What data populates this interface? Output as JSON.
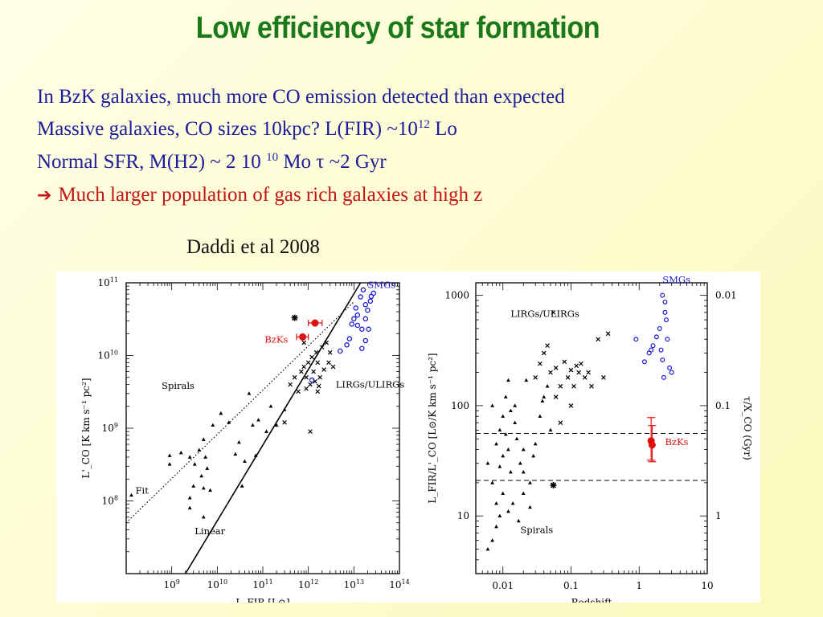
{
  "slide": {
    "title": "Low efficiency of star formation",
    "lines": [
      {
        "text": "In BzK galaxies, much more CO emission detected than expected"
      },
      {
        "pre": "Massive galaxies, CO sizes 10kpc?  L(FIR) ~10",
        "sup": "12",
        "post": " Lo"
      },
      {
        "pre": "Normal SFR, M(H2) ~ 2 10 ",
        "sup": "10",
        "post": " Mo  τ ~2 Gyr"
      },
      {
        "arrow": "➔",
        "text": "Much larger population of gas rich galaxies at high z"
      }
    ],
    "citation": "Daddi et al  2008"
  },
  "colors": {
    "title": "#1a7a1a",
    "body": "#1c1c9c",
    "highlight": "#c41414",
    "smg": "#1a1ad0",
    "bzk": "#e01010"
  },
  "chart_data": [
    {
      "type": "scatter",
      "xlabel": "L_FIR [L⊙]",
      "ylabel": "L'_CO [K km s⁻¹ pc²]",
      "xlog": true,
      "ylog": true,
      "xlim": [
        100000000.0,
        100000000000000.0
      ],
      "ylim": [
        10000000.0,
        100000000000.0
      ],
      "xticks": [
        {
          "v": 1000000000.0,
          "b": "10",
          "e": "9"
        },
        {
          "v": 10000000000.0,
          "b": "10",
          "e": "10"
        },
        {
          "v": 100000000000.0,
          "b": "10",
          "e": "11"
        },
        {
          "v": 1000000000000.0,
          "b": "10",
          "e": "12"
        },
        {
          "v": 10000000000000.0,
          "b": "10",
          "e": "13"
        },
        {
          "v": 100000000000000.0,
          "b": "10",
          "e": "14"
        }
      ],
      "yticks": [
        {
          "v": 100000000.0,
          "b": "10",
          "e": "8"
        },
        {
          "v": 1000000000.0,
          "b": "10",
          "e": "9"
        },
        {
          "v": 10000000000.0,
          "b": "10",
          "e": "10"
        },
        {
          "v": 100000000000.0,
          "b": "10",
          "e": "11"
        }
      ],
      "annotations": [
        {
          "text": "SMGs",
          "x": 20000000000000.0,
          "y": 85000000000.0,
          "color": "smg"
        },
        {
          "text": "BzKs",
          "x": 110000000000.0,
          "y": 15000000000.0,
          "color": "bzk"
        },
        {
          "text": "Spirals",
          "x": 600000000.0,
          "y": 3500000000.0,
          "color": "black"
        },
        {
          "text": "LIRGs/ULIRGs",
          "x": 4000000000000.0,
          "y": 3600000000.0,
          "color": "black"
        },
        {
          "text": "Fit",
          "x": 160000000.0,
          "y": 125000000.0,
          "color": "black"
        },
        {
          "text": "Linear",
          "x": 3200000000.0,
          "y": 35000000.0,
          "color": "black"
        }
      ],
      "lines": [
        {
          "name": "Fit",
          "style": "dotted",
          "points": [
            [
              100000000.0,
              50000000.0
            ],
            [
              10000000000000.0,
              55000000000.0
            ]
          ]
        },
        {
          "name": "Linear",
          "style": "solid",
          "points": [
            [
              2000000000.0,
              10000000.0
            ],
            [
              14000000000000.0,
              100000000000.0
            ]
          ]
        }
      ],
      "series": [
        {
          "name": "Spirals",
          "marker": "triangle",
          "color": "black",
          "points": [
            [
              130000000.0,
              120000000.0
            ],
            [
              900000000.0,
              420000000.0
            ],
            [
              900000000.0,
              320000000.0
            ],
            [
              1600000000.0,
              460000000.0
            ],
            [
              2500000000.0,
              400000000.0
            ],
            [
              3200000000.0,
              320000000.0
            ],
            [
              4000000000.0,
              500000000.0
            ],
            [
              5000000000.0,
              700000000.0
            ],
            [
              5500000000.0,
              400000000.0
            ],
            [
              6000000000.0,
              280000000.0
            ],
            [
              4500000000.0,
              220000000.0
            ],
            [
              3000000000.0,
              160000000.0
            ],
            [
              2500000000.0,
              110000000.0
            ],
            [
              5000000000.0,
              150000000.0
            ],
            [
              7000000000.0,
              140000000.0
            ],
            [
              2500000000.0,
              80000000.0
            ],
            [
              5000000000.0,
              60000000.0
            ],
            [
              8000000000.0,
              1100000000.0
            ],
            [
              12000000000.0,
              1600000000.0
            ],
            [
              18000000000.0,
              1200000000.0
            ],
            [
              25000000000.0,
              440000000.0
            ],
            [
              30000000000.0,
              640000000.0
            ],
            [
              35000000000.0,
              160000000.0
            ],
            [
              40000000000.0,
              350000000.0
            ],
            [
              50000000000.0,
              3000000000.0
            ],
            [
              60000000000.0,
              1100000000.0
            ],
            [
              70000000000.0,
              420000000.0
            ],
            [
              80000000000.0,
              1300000000.0
            ],
            [
              120000000000.0,
              900000000.0
            ],
            [
              150000000000.0,
              2000000000.0
            ],
            [
              200000000000.0,
              1100000000.0
            ],
            [
              300000000000.0,
              1800000000.0
            ]
          ]
        },
        {
          "name": "LIRGs/ULIRGs",
          "marker": "cross",
          "color": "black",
          "points": [
            [
              300000000000.0,
              1200000000.0
            ],
            [
              400000000000.0,
              4000000000.0
            ],
            [
              500000000000.0,
              5000000000.0
            ],
            [
              600000000000.0,
              3200000000.0
            ],
            [
              700000000000.0,
              6000000000.0
            ],
            [
              800000000000.0,
              7000000000.0
            ],
            [
              900000000000.0,
              5000000000.0
            ],
            [
              1000000000000.0,
              8000000000.0
            ],
            [
              1200000000000.0,
              9500000000.0
            ],
            [
              1300000000000.0,
              6000000000.0
            ],
            [
              1500000000000.0,
              11000000000.0
            ],
            [
              1600000000000.0,
              8000000000.0
            ],
            [
              1800000000000.0,
              5000000000.0
            ],
            [
              2000000000000.0,
              13000000000.0
            ],
            [
              2200000000000.0,
              6400000000.0
            ],
            [
              2500000000000.0,
              15000000000.0
            ],
            [
              2800000000000.0,
              8000000000.0
            ],
            [
              3000000000000.0,
              11000000000.0
            ],
            [
              3500000000000.0,
              7000000000.0
            ],
            [
              1100000000000.0,
              4000000000.0
            ],
            [
              900000000000.0,
              3500000000.0
            ],
            [
              1400000000000.0,
              4400000000.0
            ],
            [
              1700000000000.0,
              3800000000.0
            ],
            [
              1600000000000.0,
              3200000000.0
            ],
            [
              800000000000.0,
              15000000000.0
            ],
            [
              1100000000000.0,
              900000000.0
            ]
          ]
        },
        {
          "name": "SMGs",
          "marker": "circle",
          "color": "smg",
          "points": [
            [
              5000000000000.0,
              11500000000.0
            ],
            [
              7000000000000.0,
              14000000000.0
            ],
            [
              8000000000000.0,
              17000000000.0
            ],
            [
              9000000000000.0,
              27000000000.0
            ],
            [
              10000000000000.0,
              32000000000.0
            ],
            [
              11000000000000.0,
              45000000000.0
            ],
            [
              12000000000000.0,
              36000000000.0
            ],
            [
              14000000000000.0,
              64000000000.0
            ],
            [
              16000000000000.0,
              80000000000.0
            ],
            [
              18000000000000.0,
              50000000000.0
            ],
            [
              15000000000000.0,
              23000000000.0
            ],
            [
              12000000000000.0,
              26000000000.0
            ],
            [
              18000000000000.0,
              32000000000.0
            ],
            [
              20000000000000.0,
              42000000000.0
            ],
            [
              21000000000000.0,
              23000000000.0
            ],
            [
              23000000000000.0,
              56000000000.0
            ],
            [
              24000000000000.0,
              65000000000.0
            ],
            [
              27000000000000.0,
              72000000000.0
            ],
            [
              1200000000000.0,
              4600000000.0
            ],
            [
              15000000000000.0,
              12500000000.0
            ],
            [
              18000000000000.0,
              16000000000.0
            ]
          ]
        },
        {
          "name": "BzKs",
          "marker": "filled-circle",
          "color": "bzk",
          "points": [
            [
              750000000000.0,
              18000000000.0
            ],
            [
              1400000000000.0,
              28000000000.0
            ]
          ],
          "xerr": [
            [
              200000000000.0,
              250000000000.0
            ],
            [
              400000000000.0,
              600000000000.0
            ]
          ]
        },
        {
          "name": "star",
          "marker": "star",
          "color": "black",
          "points": [
            [
              500000000000.0,
              33000000000.0
            ]
          ]
        }
      ]
    },
    {
      "type": "scatter",
      "xlabel": "Redshift",
      "ylabel": "L_FIR/L'_CO [L⊙/K km s⁻¹ pc²]",
      "ylabel2": "τ/X_CO (Gyr)",
      "xlog": true,
      "ylog": true,
      "xlim": [
        0.004,
        10
      ],
      "ylim": [
        3,
        1300
      ],
      "xticks": [
        {
          "v": 0.01,
          "t": "0.01"
        },
        {
          "v": 0.1,
          "t": "0.1"
        },
        {
          "v": 1,
          "t": "1"
        },
        {
          "v": 10,
          "t": "10"
        }
      ],
      "yticks": [
        {
          "v": 10,
          "t": "10"
        },
        {
          "v": 100,
          "t": "100"
        },
        {
          "v": 1000,
          "t": "1000"
        }
      ],
      "y2ticks": [
        {
          "v": 10,
          "t": "1"
        },
        {
          "v": 100,
          "t": "0.1"
        },
        {
          "v": 1000,
          "t": "0.01"
        }
      ],
      "annotations": [
        {
          "text": "SMGs",
          "x": 2.2,
          "y": 1300,
          "color": "smg"
        },
        {
          "text": "LIRGs/ULIRGs",
          "x": 0.013,
          "y": 640,
          "color": "black"
        },
        {
          "text": "Spirals",
          "x": 0.018,
          "y": 7,
          "color": "black"
        },
        {
          "text": "BzKs",
          "x": 2.4,
          "y": 44,
          "color": "bzk"
        }
      ],
      "hlines": [
        {
          "y": 56,
          "style": "dashed"
        },
        {
          "y": 21,
          "style": "dashed"
        }
      ],
      "series": [
        {
          "name": "Spirals",
          "marker": "triangle",
          "color": "black",
          "points": [
            [
              0.006,
              5
            ],
            [
              0.007,
              6
            ],
            [
              0.008,
              8
            ],
            [
              0.009,
              10
            ],
            [
              0.008,
              13
            ],
            [
              0.01,
              16
            ],
            [
              0.007,
              20
            ],
            [
              0.009,
              28
            ],
            [
              0.01,
              35
            ],
            [
              0.012,
              40
            ],
            [
              0.008,
              45
            ],
            [
              0.009,
              60
            ],
            [
              0.01,
              80
            ],
            [
              0.007,
              100
            ],
            [
              0.011,
              120
            ],
            [
              0.012,
              170
            ],
            [
              0.013,
              90
            ],
            [
              0.015,
              70
            ],
            [
              0.016,
              50
            ],
            [
              0.018,
              30
            ],
            [
              0.02,
              25
            ],
            [
              0.025,
              20
            ],
            [
              0.028,
              35
            ],
            [
              0.03,
              45
            ],
            [
              0.035,
              80
            ],
            [
              0.04,
              120
            ],
            [
              0.045,
              150
            ],
            [
              0.05,
              60
            ],
            [
              0.012,
              11
            ],
            [
              0.014,
              13
            ],
            [
              0.017,
              9
            ],
            [
              0.02,
              16
            ],
            [
              0.025,
              12
            ],
            [
              0.006,
              30
            ],
            [
              0.015,
              100
            ],
            [
              0.022,
              170
            ],
            [
              0.038,
              110
            ],
            [
              0.011,
              55
            ],
            [
              0.013,
              25
            ],
            [
              0.02,
              40
            ]
          ]
        },
        {
          "name": "LIRGs/ULIRGs",
          "marker": "cross",
          "color": "black",
          "points": [
            [
              0.03,
              180
            ],
            [
              0.035,
              240
            ],
            [
              0.04,
              300
            ],
            [
              0.045,
              350
            ],
            [
              0.05,
              200
            ],
            [
              0.055,
              700
            ],
            [
              0.06,
              220
            ],
            [
              0.07,
              150
            ],
            [
              0.08,
              250
            ],
            [
              0.09,
              180
            ],
            [
              0.1,
              210
            ],
            [
              0.11,
              150
            ],
            [
              0.12,
              230
            ],
            [
              0.13,
              200
            ],
            [
              0.14,
              240
            ],
            [
              0.16,
              180
            ],
            [
              0.18,
              200
            ],
            [
              0.2,
              150
            ],
            [
              0.25,
              400
            ],
            [
              0.35,
              450
            ],
            [
              0.3,
              180
            ],
            [
              0.07,
              70
            ],
            [
              0.1,
              100
            ],
            [
              0.06,
              120
            ]
          ]
        },
        {
          "name": "SMGs",
          "marker": "circle-and-triangle",
          "color": "smg",
          "points": [
            [
              0.9,
              400
            ],
            [
              1.2,
              250
            ],
            [
              1.4,
              300
            ],
            [
              1.6,
              350
            ],
            [
              1.8,
              420
            ],
            [
              2.0,
              500
            ],
            [
              2.2,
              260
            ],
            [
              2.3,
              180
            ],
            [
              2.5,
              600
            ],
            [
              2.8,
              220
            ],
            [
              3.0,
              200
            ],
            [
              2.1,
              320
            ],
            [
              2.6,
              400
            ],
            [
              2.4,
              700
            ],
            [
              2.2,
              1000
            ],
            [
              2.4,
              870
            ],
            [
              1.5,
              320
            ]
          ]
        },
        {
          "name": "BzKs",
          "marker": "filled-circle",
          "color": "bzk",
          "points": [
            [
              1.5,
              48
            ],
            [
              1.55,
              44
            ]
          ],
          "yerr": [
            [
              16,
              30
            ],
            [
              13,
              22
            ]
          ]
        },
        {
          "name": "star",
          "marker": "star",
          "color": "black",
          "points": [
            [
              0.055,
              19
            ]
          ]
        }
      ]
    }
  ]
}
